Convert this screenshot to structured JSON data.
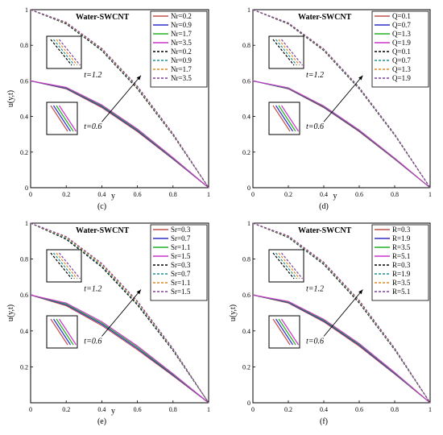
{
  "colors": {
    "axis": "#000000",
    "series": [
      "#C0504D",
      "#2E2EC8",
      "#22B022",
      "#CC33CC"
    ],
    "dashed": [
      "#000000",
      "#1F8F8F",
      "#E08A20",
      "#7F3F9F"
    ]
  },
  "chart_data": [
    {
      "type": "line",
      "panel_label": "(c)",
      "title": "Water-SWCNT",
      "xlabel": "y",
      "ylabel": "u(y,t)",
      "xlim": [
        0,
        1
      ],
      "ylim": [
        0,
        1
      ],
      "xticks": [
        "0",
        "0.2",
        "0.4",
        "0.6",
        "0.8",
        "1"
      ],
      "yticks": [
        "0",
        "0.2",
        "0.4",
        "0.6",
        "0.8",
        "1"
      ],
      "y_tick_values": [
        0,
        0.2,
        0.4,
        0.6,
        0.8,
        1
      ],
      "legend": [
        "Nr=0.2",
        "Nr=0.9",
        "Nr=1.7",
        "Nr=3.5",
        "Nr=0.2",
        "Nr=0.9",
        "Nr=1.7",
        "Nr=3.5"
      ],
      "legend_placement": "top-right",
      "annotations": [
        "t=1.2",
        "t=0.6"
      ],
      "x": [
        0,
        0.2,
        0.4,
        0.6,
        0.8,
        1
      ],
      "series": [
        {
          "name": "Nr=0.2",
          "t": 0.6,
          "values": [
            0.6,
            0.555,
            0.45,
            0.315,
            0.16,
            0
          ]
        },
        {
          "name": "Nr=0.9",
          "t": 0.6,
          "values": [
            0.6,
            0.558,
            0.455,
            0.32,
            0.163,
            0
          ]
        },
        {
          "name": "Nr=1.7",
          "t": 0.6,
          "values": [
            0.6,
            0.561,
            0.46,
            0.325,
            0.166,
            0
          ]
        },
        {
          "name": "Nr=3.5",
          "t": 0.6,
          "values": [
            0.6,
            0.564,
            0.465,
            0.33,
            0.169,
            0
          ]
        },
        {
          "name": "Nr=0.2",
          "t": 1.2,
          "values": [
            1.0,
            0.92,
            0.77,
            0.555,
            0.295,
            0
          ]
        },
        {
          "name": "Nr=0.9",
          "t": 1.2,
          "values": [
            1.0,
            0.923,
            0.774,
            0.56,
            0.298,
            0
          ]
        },
        {
          "name": "Nr=1.7",
          "t": 1.2,
          "values": [
            1.0,
            0.926,
            0.778,
            0.565,
            0.301,
            0
          ]
        },
        {
          "name": "Nr=3.5",
          "t": 1.2,
          "values": [
            1.0,
            0.929,
            0.782,
            0.57,
            0.304,
            0
          ]
        }
      ]
    },
    {
      "type": "line",
      "panel_label": "(d)",
      "title": "Water-SWCNT",
      "xlabel": "y",
      "ylabel": "",
      "xlim": [
        0,
        1
      ],
      "ylim": [
        0,
        1
      ],
      "xticks": [
        "0",
        "0.2",
        "0.4",
        "0.6",
        "0.8",
        "1"
      ],
      "yticks": [
        "0",
        "0.2",
        "0.4",
        "0.6",
        "0.8",
        "1"
      ],
      "y_tick_values": [
        0,
        0.2,
        0.4,
        0.6,
        0.8,
        1
      ],
      "legend": [
        "Q=0.1",
        "Q=0.7",
        "Q=1.3",
        "Q=1.9",
        "Q=0.1",
        "Q=0.7",
        "Q=1.3",
        "Q=1.9"
      ],
      "legend_placement": "top-right",
      "annotations": [
        "t=1.2",
        "t=0.6"
      ],
      "x": [
        0,
        0.2,
        0.4,
        0.6,
        0.8,
        1
      ],
      "series": [
        {
          "name": "Q=0.1",
          "t": 0.6,
          "values": [
            0.6,
            0.555,
            0.45,
            0.315,
            0.16,
            0
          ]
        },
        {
          "name": "Q=0.7",
          "t": 0.6,
          "values": [
            0.6,
            0.557,
            0.453,
            0.318,
            0.162,
            0
          ]
        },
        {
          "name": "Q=1.3",
          "t": 0.6,
          "values": [
            0.6,
            0.559,
            0.456,
            0.321,
            0.164,
            0
          ]
        },
        {
          "name": "Q=1.9",
          "t": 0.6,
          "values": [
            0.6,
            0.561,
            0.459,
            0.324,
            0.166,
            0
          ]
        },
        {
          "name": "Q=0.1",
          "t": 1.2,
          "values": [
            1.0,
            0.92,
            0.77,
            0.555,
            0.295,
            0
          ]
        },
        {
          "name": "Q=0.7",
          "t": 1.2,
          "values": [
            1.0,
            0.922,
            0.773,
            0.558,
            0.297,
            0
          ]
        },
        {
          "name": "Q=1.3",
          "t": 1.2,
          "values": [
            1.0,
            0.924,
            0.776,
            0.561,
            0.299,
            0
          ]
        },
        {
          "name": "Q=1.9",
          "t": 1.2,
          "values": [
            1.0,
            0.926,
            0.779,
            0.564,
            0.301,
            0
          ]
        }
      ]
    },
    {
      "type": "line",
      "panel_label": "(e)",
      "title": "Water-SWCNT",
      "xlabel": "y",
      "ylabel": "u(y,t)",
      "xlim": [
        0,
        1
      ],
      "ylim": [
        0,
        1
      ],
      "xticks": [
        "0",
        "0.2",
        "0.4",
        "0.6",
        "0.8",
        "1"
      ],
      "yticks": [
        "0.2",
        "0.4",
        "0.6",
        "0.8",
        "1"
      ],
      "y_tick_values": [
        0.2,
        0.4,
        0.6,
        0.8,
        1
      ],
      "legend": [
        "Sr=0.3",
        "Sr=0.7",
        "Sr=1.1",
        "Sr=1.5",
        "Sr=0.3",
        "Sr=0.7",
        "Sr=1.1",
        "Sr=1.5"
      ],
      "legend_placement": "top-right",
      "annotations": [
        "t=1.2",
        "t=0.6"
      ],
      "x": [
        0,
        0.2,
        0.4,
        0.6,
        0.8,
        1
      ],
      "series": [
        {
          "name": "Sr=0.3",
          "t": 0.6,
          "values": [
            0.6,
            0.54,
            0.43,
            0.295,
            0.15,
            0
          ]
        },
        {
          "name": "Sr=0.7",
          "t": 0.6,
          "values": [
            0.6,
            0.545,
            0.437,
            0.302,
            0.154,
            0
          ]
        },
        {
          "name": "Sr=1.1",
          "t": 0.6,
          "values": [
            0.6,
            0.55,
            0.444,
            0.309,
            0.158,
            0
          ]
        },
        {
          "name": "Sr=1.5",
          "t": 0.6,
          "values": [
            0.6,
            0.555,
            0.451,
            0.316,
            0.162,
            0
          ]
        },
        {
          "name": "Sr=0.3",
          "t": 1.2,
          "values": [
            1.0,
            0.91,
            0.755,
            0.545,
            0.29,
            0
          ]
        },
        {
          "name": "Sr=0.7",
          "t": 1.2,
          "values": [
            1.0,
            0.915,
            0.762,
            0.552,
            0.294,
            0
          ]
        },
        {
          "name": "Sr=1.1",
          "t": 1.2,
          "values": [
            1.0,
            0.92,
            0.769,
            0.559,
            0.298,
            0
          ]
        },
        {
          "name": "Sr=1.5",
          "t": 1.2,
          "values": [
            1.0,
            0.925,
            0.776,
            0.566,
            0.302,
            0
          ]
        }
      ]
    },
    {
      "type": "line",
      "panel_label": "(f)",
      "title": "Water-SWCNT",
      "xlabel": "",
      "ylabel": "u(y,t)",
      "xlim": [
        0,
        1
      ],
      "ylim": [
        0,
        1
      ],
      "xticks": [
        "0",
        "0.2",
        "0.4",
        "0.6",
        "0.8",
        "1"
      ],
      "yticks": [
        "0",
        "0.2",
        "0.4",
        "0.6",
        "0.8",
        "1"
      ],
      "y_tick_values": [
        0,
        0.2,
        0.4,
        0.6,
        0.8,
        1
      ],
      "legend": [
        "R=0.3",
        "R=1.9",
        "R=3.5",
        "R=5.1",
        "R=0.3",
        "R=1.9",
        "R=3.5",
        "R=5.1"
      ],
      "legend_placement": "top-right",
      "annotations": [
        "t=1.2",
        "t=0.6"
      ],
      "x": [
        0,
        0.2,
        0.4,
        0.6,
        0.8,
        1
      ],
      "series": [
        {
          "name": "R=0.3",
          "t": 0.6,
          "values": [
            0.6,
            0.555,
            0.45,
            0.315,
            0.16,
            0
          ]
        },
        {
          "name": "R=1.9",
          "t": 0.6,
          "values": [
            0.6,
            0.558,
            0.455,
            0.32,
            0.163,
            0
          ]
        },
        {
          "name": "R=3.5",
          "t": 0.6,
          "values": [
            0.6,
            0.561,
            0.46,
            0.325,
            0.166,
            0
          ]
        },
        {
          "name": "R=5.1",
          "t": 0.6,
          "values": [
            0.6,
            0.564,
            0.465,
            0.33,
            0.169,
            0
          ]
        },
        {
          "name": "R=0.3",
          "t": 1.2,
          "values": [
            1.0,
            0.92,
            0.77,
            0.555,
            0.295,
            0
          ]
        },
        {
          "name": "R=1.9",
          "t": 1.2,
          "values": [
            1.0,
            0.923,
            0.774,
            0.56,
            0.298,
            0
          ]
        },
        {
          "name": "R=3.5",
          "t": 1.2,
          "values": [
            1.0,
            0.926,
            0.778,
            0.565,
            0.301,
            0
          ]
        },
        {
          "name": "R=5.1",
          "t": 1.2,
          "values": [
            1.0,
            0.929,
            0.782,
            0.57,
            0.304,
            0
          ]
        }
      ]
    }
  ]
}
